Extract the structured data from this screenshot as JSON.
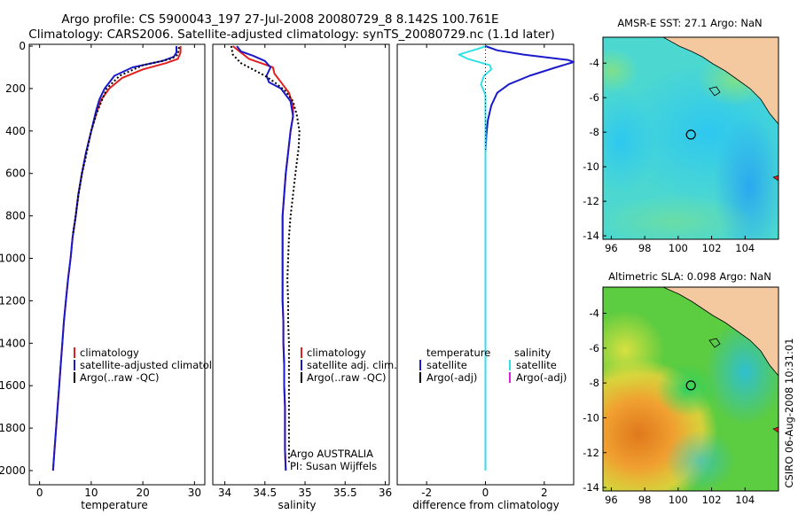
{
  "title": {
    "line1": "Argo profile: CS 5900043_197 27-Jul-2008 20080729_8 8.142S 100.761E",
    "line2": "Climatology: CARS2006. Satellite-adjusted climatology: synTS_20080729.nc (1.1d later)"
  },
  "stamp": "CSIRO 06-Aug-2008 10:31:01",
  "colors": {
    "climatology": "#e02020",
    "satellite": "#1a1acc",
    "argo": "#000000",
    "salinity_satellite": "#33e0e8",
    "salinity_argo": "#e020e0",
    "land": "#f5c9a0"
  },
  "chart_data": [
    {
      "type": "line",
      "id": "temperature",
      "xlabel": "temperature",
      "ylabel": "",
      "xlim": [
        -2,
        32
      ],
      "ylim": [
        2060,
        0
      ],
      "xticks": [
        0,
        10,
        20,
        30
      ],
      "yticks": [
        0,
        200,
        400,
        600,
        800,
        1000,
        1200,
        1400,
        1600,
        1800,
        2000
      ],
      "legend": [
        "climatology",
        "satellite-adjusted climatology",
        "Argo(..raw -QC)"
      ],
      "series": [
        {
          "name": "climatology",
          "color": "#e02020",
          "points": [
            [
              27.3,
              0
            ],
            [
              27.3,
              30
            ],
            [
              26.8,
              60
            ],
            [
              24.5,
              80
            ],
            [
              20,
              110
            ],
            [
              16,
              150
            ],
            [
              13.5,
              200
            ],
            [
              12,
              250
            ],
            [
              11.2,
              300
            ],
            [
              10,
              400
            ],
            [
              9,
              500
            ],
            [
              8.2,
              600
            ],
            [
              7.5,
              700
            ],
            [
              7,
              800
            ],
            [
              6.4,
              900
            ],
            [
              6,
              1000
            ],
            [
              5.5,
              1100
            ],
            [
              5.1,
              1200
            ],
            [
              4.7,
              1300
            ],
            [
              4.4,
              1400
            ],
            [
              4.1,
              1500
            ],
            [
              3.8,
              1600
            ],
            [
              3.5,
              1700
            ],
            [
              3.2,
              1800
            ],
            [
              2.9,
              1900
            ],
            [
              2.6,
              2000
            ]
          ]
        },
        {
          "name": "satellite-adjusted climatology",
          "color": "#1a1acc",
          "points": [
            [
              26.5,
              0
            ],
            [
              26.5,
              30
            ],
            [
              26,
              50
            ],
            [
              23.8,
              70
            ],
            [
              18,
              100
            ],
            [
              14.5,
              140
            ],
            [
              12.6,
              200
            ],
            [
              11.6,
              250
            ],
            [
              11,
              300
            ],
            [
              10,
              400
            ],
            [
              9,
              500
            ],
            [
              8.2,
              600
            ],
            [
              7.5,
              700
            ],
            [
              7,
              800
            ],
            [
              6.4,
              900
            ],
            [
              6,
              1000
            ],
            [
              5.5,
              1100
            ],
            [
              5.1,
              1200
            ],
            [
              4.7,
              1300
            ],
            [
              4.4,
              1400
            ],
            [
              4.1,
              1500
            ],
            [
              3.8,
              1600
            ],
            [
              3.5,
              1700
            ],
            [
              3.2,
              1800
            ],
            [
              2.9,
              1900
            ],
            [
              2.6,
              2000
            ]
          ]
        },
        {
          "name": "Argo(..raw -QC)",
          "color": "#000000",
          "points": [
            [
              27,
              5
            ],
            [
              26.8,
              40
            ],
            [
              25.5,
              60
            ],
            [
              20,
              90
            ],
            [
              15.5,
              140
            ],
            [
              13,
              200
            ],
            [
              12,
              260
            ],
            [
              11,
              320
            ],
            [
              10,
              400
            ],
            [
              9.3,
              480
            ],
            [
              8.8,
              540
            ],
            [
              8.2,
              600
            ],
            [
              7.6,
              690
            ],
            [
              7,
              800
            ],
            [
              6.5,
              880
            ]
          ]
        }
      ]
    },
    {
      "type": "line",
      "id": "salinity",
      "xlabel": "salinity",
      "ylabel": "",
      "xlim": [
        33.85,
        36.05
      ],
      "ylim": [
        2060,
        0
      ],
      "xticks": [
        34,
        34.5,
        35,
        35.5,
        36
      ],
      "legend": [
        "climatology",
        "satellite adj. clim.",
        "Argo(..raw -QC)"
      ],
      "annotations": [
        "Argo AUSTRALIA",
        "PI: Susan Wijffels"
      ],
      "series": [
        {
          "name": "climatology",
          "color": "#e02020",
          "points": [
            [
              34.1,
              0
            ],
            [
              34.2,
              30
            ],
            [
              34.3,
              60
            ],
            [
              34.45,
              80
            ],
            [
              34.6,
              100
            ],
            [
              34.62,
              130
            ],
            [
              34.7,
              170
            ],
            [
              34.8,
              220
            ],
            [
              34.85,
              280
            ],
            [
              34.85,
              330
            ],
            [
              34.82,
              400
            ],
            [
              34.79,
              500
            ],
            [
              34.76,
              600
            ],
            [
              34.74,
              700
            ],
            [
              34.72,
              800
            ],
            [
              34.72,
              900
            ],
            [
              34.72,
              1000
            ],
            [
              34.72,
              1100
            ],
            [
              34.72,
              1200
            ],
            [
              34.73,
              1300
            ],
            [
              34.73,
              1400
            ],
            [
              34.74,
              1500
            ],
            [
              34.74,
              1600
            ],
            [
              34.75,
              1700
            ],
            [
              34.75,
              1800
            ],
            [
              34.75,
              1900
            ],
            [
              34.76,
              2000
            ]
          ]
        },
        {
          "name": "satellite adj. clim.",
          "color": "#1a1acc",
          "points": [
            [
              34.15,
              0
            ],
            [
              34.2,
              25
            ],
            [
              34.35,
              45
            ],
            [
              34.5,
              70
            ],
            [
              34.57,
              100
            ],
            [
              34.52,
              140
            ],
            [
              34.55,
              170
            ],
            [
              34.7,
              200
            ],
            [
              34.82,
              260
            ],
            [
              34.85,
              330
            ],
            [
              34.82,
              400
            ],
            [
              34.79,
              500
            ],
            [
              34.76,
              600
            ],
            [
              34.74,
              700
            ],
            [
              34.72,
              800
            ],
            [
              34.72,
              900
            ],
            [
              34.72,
              1000
            ],
            [
              34.72,
              1100
            ],
            [
              34.72,
              1200
            ],
            [
              34.73,
              1300
            ],
            [
              34.73,
              1400
            ],
            [
              34.74,
              1500
            ],
            [
              34.74,
              1600
            ],
            [
              34.75,
              1700
            ],
            [
              34.75,
              1800
            ],
            [
              34.75,
              1900
            ],
            [
              34.76,
              2000
            ]
          ]
        },
        {
          "name": "Argo(..raw -QC)",
          "color": "#000000",
          "points": [
            [
              34.08,
              0
            ],
            [
              34.1,
              40
            ],
            [
              34.2,
              80
            ],
            [
              34.35,
              110
            ],
            [
              34.5,
              140
            ],
            [
              34.62,
              170
            ],
            [
              34.75,
              210
            ],
            [
              34.85,
              260
            ],
            [
              34.9,
              330
            ],
            [
              34.93,
              400
            ],
            [
              34.92,
              480
            ],
            [
              34.88,
              600
            ],
            [
              34.85,
              700
            ],
            [
              34.82,
              800
            ],
            [
              34.8,
              900
            ],
            [
              34.79,
              1000
            ],
            [
              34.78,
              1100
            ],
            [
              34.79,
              1200
            ],
            [
              34.79,
              1300
            ],
            [
              34.8,
              1400
            ],
            [
              34.8,
              1500
            ],
            [
              34.8,
              1600
            ],
            [
              34.8,
              1700
            ],
            [
              34.8,
              1800
            ],
            [
              34.8,
              1900
            ],
            [
              34.8,
              1960
            ]
          ]
        }
      ]
    },
    {
      "type": "line",
      "id": "difference",
      "xlabel": "difference from climatology",
      "ylabel": "",
      "xlim": [
        -3,
        3
      ],
      "ylim": [
        2060,
        0
      ],
      "xticks": [
        -2,
        0,
        2
      ],
      "legend": {
        "temperature_header": "temperature",
        "salinity_header": "salinity",
        "temperature": [
          "satellite",
          "Argo(-adj)"
        ],
        "salinity": [
          "satellite",
          "Argo(-adj)"
        ]
      },
      "series": [
        {
          "name": "temperature satellite",
          "color": "#1a1acc",
          "points": [
            [
              0,
              0
            ],
            [
              0.4,
              20
            ],
            [
              1.3,
              40
            ],
            [
              2.8,
              65
            ],
            [
              3,
              75
            ],
            [
              2.4,
              100
            ],
            [
              1.5,
              140
            ],
            [
              0.8,
              180
            ],
            [
              0.4,
              220
            ],
            [
              0.2,
              280
            ],
            [
              0.08,
              350
            ],
            [
              0.03,
              420
            ],
            [
              0,
              500
            ],
            [
              0,
              800
            ],
            [
              0,
              1200
            ],
            [
              0,
              1600
            ],
            [
              0,
              2000
            ]
          ]
        },
        {
          "name": "salinity satellite",
          "color": "#33e0e8",
          "points": [
            [
              0.02,
              0
            ],
            [
              -0.3,
              15
            ],
            [
              -0.9,
              40
            ],
            [
              -0.6,
              60
            ],
            [
              0.15,
              90
            ],
            [
              0.2,
              110
            ],
            [
              -0.05,
              140
            ],
            [
              -0.15,
              180
            ],
            [
              0,
              230
            ],
            [
              0,
              300
            ],
            [
              0,
              400
            ],
            [
              0,
              1000
            ],
            [
              0,
              2000
            ]
          ]
        },
        {
          "name": "zero reference",
          "color": "#000000",
          "dotted": true,
          "points": [
            [
              0,
              0
            ],
            [
              0,
              500
            ]
          ]
        }
      ]
    },
    {
      "type": "heatmap",
      "id": "sst-map",
      "title": "AMSR-E SST: 27.1 Argo: NaN",
      "xlim": [
        95.5,
        106
      ],
      "ylim": [
        -14.2,
        -2.5
      ],
      "xticks": [
        96,
        98,
        100,
        102,
        104
      ],
      "yticks": [
        -4,
        -6,
        -8,
        -10,
        -12,
        -14
      ],
      "argo_marker": {
        "lon": 100.761,
        "lat": -8.142
      }
    },
    {
      "type": "heatmap",
      "id": "sla-map",
      "title": "Altimetric SLA: 0.098 Argo: NaN",
      "xlim": [
        95.5,
        106
      ],
      "ylim": [
        -14.2,
        -2.5
      ],
      "xticks": [
        96,
        98,
        100,
        102,
        104
      ],
      "yticks": [
        -4,
        -6,
        -8,
        -10,
        -12,
        -14
      ],
      "argo_marker": {
        "lon": 100.761,
        "lat": -8.142
      }
    }
  ]
}
